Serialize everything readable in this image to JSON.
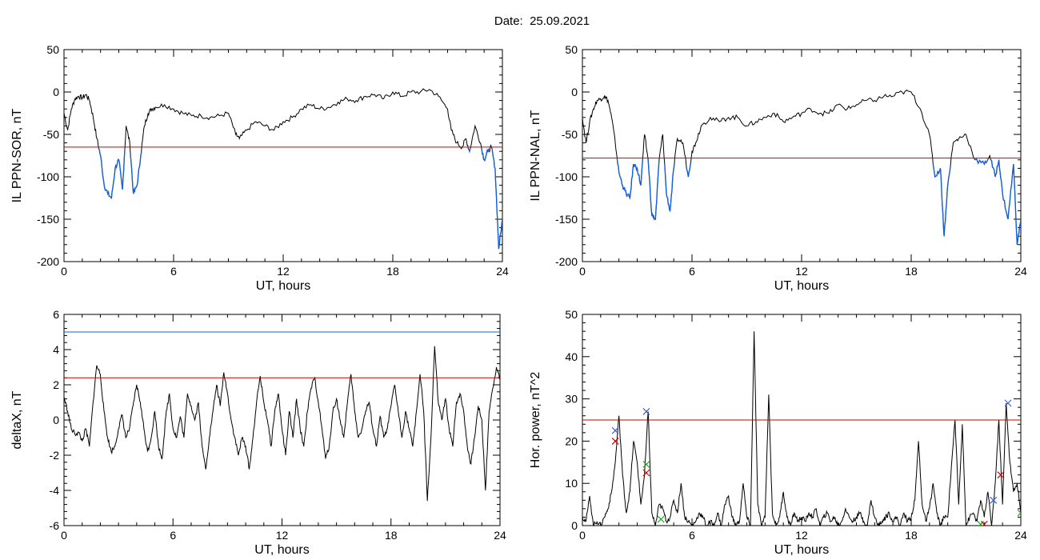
{
  "page": {
    "title_prefix": "Date:",
    "date": "25.09.2021"
  },
  "colors": {
    "signal": "#000000",
    "below_threshold": "#1560d8",
    "threshold": "#cc0000",
    "upper_threshold": "#1560d8",
    "marker_blue": "#3a5fcd",
    "marker_red": "#cc0000",
    "marker_green": "#22aa22"
  },
  "chart_data": [
    {
      "id": "ppn-sor",
      "type": "line",
      "xlabel": "UT, hours",
      "ylabel": "IL PPN-SOR, nT",
      "xlim": [
        0,
        24
      ],
      "ylim": [
        -200,
        50
      ],
      "xticks": [
        0,
        6,
        12,
        18,
        24
      ],
      "yticks": [
        -200,
        -150,
        -100,
        -50,
        0,
        50
      ],
      "threshold": -65,
      "x": [
        0,
        0.2,
        0.4,
        0.6,
        0.8,
        1.0,
        1.2,
        1.4,
        1.6,
        1.8,
        2.0,
        2.2,
        2.4,
        2.6,
        2.8,
        3.0,
        3.2,
        3.4,
        3.6,
        3.8,
        4.0,
        4.2,
        4.4,
        4.6,
        4.8,
        5.0,
        5.5,
        6.0,
        6.5,
        7.0,
        7.5,
        8.0,
        8.5,
        9.0,
        9.4,
        9.6,
        10.0,
        10.5,
        11.0,
        11.5,
        12.0,
        12.5,
        13.0,
        13.5,
        14.0,
        14.5,
        15.0,
        15.5,
        16.0,
        16.5,
        17.0,
        17.5,
        18.0,
        18.5,
        19.0,
        19.5,
        20.0,
        20.5,
        21.0,
        21.2,
        21.5,
        21.8,
        22.0,
        22.2,
        22.5,
        22.8,
        23.0,
        23.2,
        23.4,
        23.6,
        23.8,
        24.0
      ],
      "y": [
        -25,
        -45,
        -20,
        -8,
        -5,
        -7,
        -3,
        -10,
        -30,
        -55,
        -75,
        -110,
        -120,
        -125,
        -90,
        -80,
        -115,
        -40,
        -60,
        -120,
        -110,
        -75,
        -40,
        -25,
        -20,
        -18,
        -15,
        -20,
        -25,
        -28,
        -28,
        -30,
        -28,
        -25,
        -50,
        -55,
        -45,
        -35,
        -40,
        -45,
        -35,
        -30,
        -20,
        -15,
        -20,
        -18,
        -12,
        -8,
        -10,
        -5,
        -3,
        -8,
        0,
        -5,
        0,
        0,
        3,
        -5,
        -20,
        -45,
        -60,
        -65,
        -55,
        -70,
        -40,
        -60,
        -80,
        -70,
        -65,
        -90,
        -185,
        -150
      ]
    },
    {
      "id": "ppn-nal",
      "type": "line",
      "xlabel": "UT, hours",
      "ylabel": "IL PPN-NAL, nT",
      "xlim": [
        0,
        24
      ],
      "ylim": [
        -200,
        50
      ],
      "xticks": [
        0,
        6,
        12,
        18,
        24
      ],
      "yticks": [
        -200,
        -150,
        -100,
        -50,
        0,
        50
      ],
      "threshold": -78,
      "x": [
        0,
        0.2,
        0.4,
        0.6,
        0.8,
        1.0,
        1.2,
        1.4,
        1.6,
        1.8,
        2.0,
        2.2,
        2.4,
        2.6,
        2.8,
        3.0,
        3.2,
        3.4,
        3.6,
        3.8,
        4.0,
        4.2,
        4.4,
        4.6,
        4.8,
        5.0,
        5.2,
        5.5,
        5.8,
        6.0,
        6.2,
        6.5,
        7.0,
        7.5,
        8.0,
        8.5,
        9.0,
        9.5,
        10.0,
        10.5,
        11.0,
        11.5,
        12.0,
        12.5,
        13.0,
        13.5,
        14.0,
        14.5,
        15.0,
        15.5,
        16.0,
        16.5,
        17.0,
        17.5,
        18.0,
        18.5,
        19.0,
        19.3,
        19.6,
        19.8,
        20.0,
        20.3,
        20.6,
        21.0,
        21.5,
        22.0,
        22.3,
        22.6,
        22.8,
        23.0,
        23.3,
        23.6,
        23.8,
        24.0
      ],
      "y": [
        -30,
        -60,
        -35,
        -20,
        -10,
        -8,
        -5,
        -10,
        -30,
        -60,
        -95,
        -110,
        -120,
        -125,
        -85,
        -90,
        -110,
        -50,
        -80,
        -145,
        -150,
        -80,
        -50,
        -120,
        -140,
        -90,
        -55,
        -60,
        -100,
        -70,
        -60,
        -40,
        -30,
        -35,
        -30,
        -30,
        -40,
        -35,
        -30,
        -25,
        -35,
        -30,
        -25,
        -20,
        -25,
        -25,
        -15,
        -20,
        -15,
        -10,
        -10,
        -5,
        -5,
        0,
        0,
        -20,
        -50,
        -100,
        -90,
        -170,
        -110,
        -60,
        -55,
        -50,
        -80,
        -85,
        -75,
        -100,
        -80,
        -120,
        -150,
        -85,
        -180,
        -150
      ]
    },
    {
      "id": "deltax",
      "type": "line",
      "xlabel": "UT, hours",
      "ylabel": "deltaX, nT",
      "xlim": [
        0,
        24
      ],
      "ylim": [
        -6,
        6
      ],
      "xticks": [
        0,
        6,
        12,
        18,
        24
      ],
      "yticks": [
        -6,
        -4,
        -2,
        0,
        2,
        4,
        6
      ],
      "threshold": 2.4,
      "upper_threshold": 5.0,
      "x": [
        0,
        0.2,
        0.4,
        0.6,
        0.8,
        1.0,
        1.2,
        1.4,
        1.6,
        1.8,
        2.0,
        2.2,
        2.4,
        2.6,
        2.8,
        3.0,
        3.2,
        3.4,
        3.6,
        3.8,
        4.0,
        4.2,
        4.4,
        4.6,
        4.8,
        5.0,
        5.2,
        5.4,
        5.6,
        5.8,
        6.0,
        6.2,
        6.4,
        6.6,
        6.8,
        7.0,
        7.2,
        7.4,
        7.6,
        7.8,
        8.0,
        8.2,
        8.4,
        8.6,
        8.8,
        9.0,
        9.2,
        9.4,
        9.6,
        9.8,
        10.0,
        10.2,
        10.4,
        10.6,
        10.8,
        11.0,
        11.2,
        11.4,
        11.6,
        11.8,
        12.0,
        12.2,
        12.4,
        12.6,
        12.8,
        13.0,
        13.2,
        13.4,
        13.6,
        13.8,
        14.0,
        14.2,
        14.4,
        14.6,
        14.8,
        15.0,
        15.2,
        15.4,
        15.6,
        15.8,
        16.0,
        16.2,
        16.4,
        16.6,
        16.8,
        17.0,
        17.2,
        17.4,
        17.6,
        17.8,
        18.0,
        18.2,
        18.4,
        18.6,
        18.8,
        19.0,
        19.2,
        19.4,
        19.6,
        19.8,
        20.0,
        20.2,
        20.4,
        20.6,
        20.8,
        21.0,
        21.2,
        21.4,
        21.6,
        21.8,
        22.0,
        22.2,
        22.4,
        22.6,
        22.8,
        23.0,
        23.2,
        23.4,
        23.6,
        23.8,
        24.0
      ],
      "y": [
        1.3,
        0.5,
        -0.5,
        -0.8,
        -0.7,
        -1.2,
        -0.5,
        -1.5,
        1.0,
        3.1,
        2.6,
        0.5,
        -1.0,
        -1.8,
        -1.5,
        -0.5,
        0.3,
        -1.0,
        -0.5,
        0.8,
        2.0,
        1.0,
        -0.5,
        -1.8,
        -1.0,
        0.5,
        -1.5,
        -2.2,
        0.2,
        1.5,
        -0.5,
        -1.0,
        0.2,
        -1.0,
        1.5,
        0.8,
        0.0,
        1.0,
        -1.5,
        -2.8,
        -1.0,
        0.5,
        2.0,
        0.8,
        2.7,
        1.5,
        0.0,
        -1.0,
        -2.0,
        -1.0,
        -1.5,
        -2.8,
        -1.0,
        1.0,
        2.5,
        1.0,
        0.0,
        -1.5,
        0.5,
        1.5,
        -0.5,
        -2.0,
        0.5,
        -1.0,
        1.2,
        -0.5,
        -1.5,
        0.5,
        1.8,
        2.4,
        1.0,
        -0.5,
        -2.2,
        -1.5,
        0.5,
        1.2,
        0.0,
        -1.0,
        1.0,
        2.6,
        0.5,
        -1.0,
        -0.5,
        0.5,
        1.0,
        -0.5,
        -1.5,
        0.2,
        -1.0,
        -0.5,
        0.8,
        2.0,
        0.5,
        -1.0,
        0.5,
        -0.5,
        -1.5,
        0.5,
        2.6,
        0.5,
        -4.6,
        -1.0,
        4.2,
        1.0,
        0.0,
        1.2,
        -0.5,
        -1.5,
        1.0,
        1.5,
        0.5,
        -1.5,
        -2.5,
        -1.0,
        0.8,
        0.0,
        -4.0,
        0.5,
        1.8,
        3.0,
        2.3
      ]
    },
    {
      "id": "hor-power",
      "type": "line",
      "xlabel": "UT, hours",
      "ylabel": "Hor. power, nT^2",
      "xlim": [
        0,
        24
      ],
      "ylim": [
        0,
        50
      ],
      "xticks": [
        0,
        6,
        12,
        18,
        24
      ],
      "yticks": [
        0,
        10,
        20,
        30,
        40,
        50
      ],
      "threshold": 25,
      "x": [
        0,
        0.2,
        0.4,
        0.6,
        0.8,
        1.0,
        1.2,
        1.4,
        1.6,
        1.8,
        2.0,
        2.2,
        2.4,
        2.6,
        2.8,
        3.0,
        3.2,
        3.4,
        3.6,
        3.8,
        4.0,
        4.2,
        4.4,
        4.6,
        4.8,
        5.0,
        5.2,
        5.4,
        5.6,
        5.8,
        6.0,
        6.2,
        6.4,
        6.6,
        6.8,
        7.0,
        7.2,
        7.4,
        7.6,
        7.8,
        8.0,
        8.2,
        8.4,
        8.6,
        8.8,
        9.0,
        9.2,
        9.4,
        9.6,
        9.8,
        10.0,
        10.2,
        10.4,
        10.6,
        10.8,
        11.0,
        11.2,
        11.4,
        11.6,
        11.8,
        12.0,
        12.2,
        12.4,
        12.6,
        12.8,
        13.0,
        13.2,
        13.4,
        13.6,
        13.8,
        14.0,
        14.2,
        14.4,
        14.6,
        14.8,
        15.0,
        15.2,
        15.4,
        15.6,
        15.8,
        16.0,
        16.2,
        16.4,
        16.6,
        16.8,
        17.0,
        17.2,
        17.4,
        17.6,
        17.8,
        18.0,
        18.2,
        18.4,
        18.6,
        18.8,
        19.0,
        19.2,
        19.4,
        19.6,
        19.8,
        20.0,
        20.2,
        20.4,
        20.6,
        20.8,
        21.0,
        21.2,
        21.4,
        21.6,
        21.8,
        22.0,
        22.2,
        22.4,
        22.6,
        22.8,
        23.0,
        23.2,
        23.4,
        23.6,
        23.8,
        24.0
      ],
      "y": [
        2,
        1,
        7,
        0,
        1,
        0,
        2,
        4,
        8,
        15,
        26,
        12,
        3,
        8,
        20,
        15,
        5,
        12,
        27,
        3,
        0,
        5,
        4,
        1,
        2,
        6,
        3,
        10,
        2,
        1,
        0,
        1,
        3,
        2,
        0,
        1,
        0,
        3,
        0,
        5,
        7,
        2,
        0,
        1,
        10,
        2,
        0,
        46,
        5,
        0,
        2,
        31,
        3,
        0,
        2,
        8,
        2,
        0,
        3,
        1,
        2,
        1,
        3,
        2,
        4,
        0,
        2,
        3,
        1,
        2,
        0,
        1,
        4,
        2,
        1,
        2,
        3,
        1,
        0,
        6,
        2,
        0,
        1,
        2,
        3,
        1,
        2,
        0,
        3,
        1,
        2,
        6,
        20,
        5,
        1,
        4,
        10,
        3,
        0,
        2,
        2,
        14,
        25,
        5,
        24,
        0,
        2,
        3,
        1,
        6,
        2,
        8,
        0,
        10,
        25,
        5,
        29,
        15,
        8,
        10,
        3
      ],
      "markers": [
        {
          "x": 1.8,
          "y": 22.5,
          "color": "blue"
        },
        {
          "x": 1.8,
          "y": 20.0,
          "color": "red"
        },
        {
          "x": 3.5,
          "y": 27.0,
          "color": "blue"
        },
        {
          "x": 3.5,
          "y": 14.5,
          "color": "green"
        },
        {
          "x": 3.5,
          "y": 12.5,
          "color": "red"
        },
        {
          "x": 4.3,
          "y": 1.5,
          "color": "green"
        },
        {
          "x": 21.8,
          "y": 0.3,
          "color": "green"
        },
        {
          "x": 22.0,
          "y": 0.3,
          "color": "red"
        },
        {
          "x": 22.5,
          "y": 6.0,
          "color": "blue"
        },
        {
          "x": 22.9,
          "y": 12.0,
          "color": "red"
        },
        {
          "x": 23.3,
          "y": 29.0,
          "color": "blue"
        },
        {
          "x": 24.0,
          "y": 3.0,
          "color": "green"
        }
      ]
    }
  ]
}
